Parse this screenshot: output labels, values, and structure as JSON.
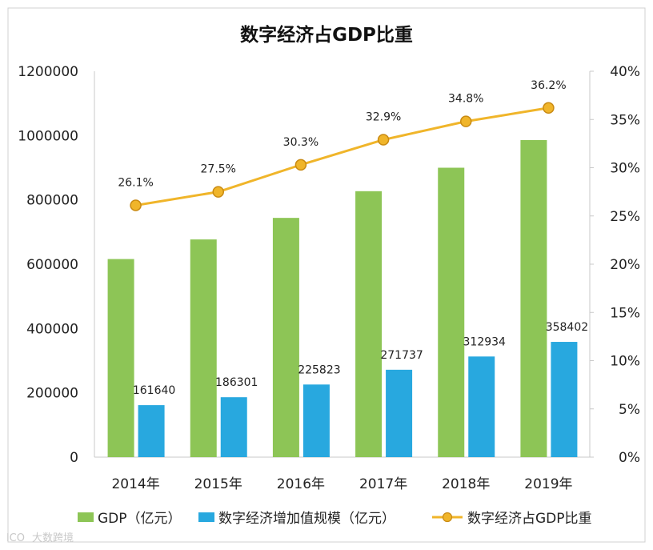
{
  "chart_data": {
    "type": "bar",
    "title": "数字经济占GDP比重",
    "categories": [
      "2014年",
      "2015年",
      "2016年",
      "2017年",
      "2018年",
      "2019年"
    ],
    "series": [
      {
        "name": "GDP（亿元）",
        "axis": "left",
        "type": "bar",
        "color": "#8dc556",
        "values": [
          616000,
          677000,
          744000,
          827000,
          900000,
          986000
        ]
      },
      {
        "name": "数字经济增加值规模（亿元）",
        "axis": "left",
        "type": "bar",
        "color": "#28a8df",
        "values": [
          161640,
          186301,
          225823,
          271737,
          312934,
          358402
        ],
        "labels": [
          "161640",
          "186301",
          "225823",
          "271737",
          "312934",
          "358402"
        ]
      },
      {
        "name": "数字经济占GDP比重",
        "axis": "right",
        "type": "line",
        "color": "#f0b52a",
        "values": [
          26.1,
          27.5,
          30.3,
          32.9,
          34.8,
          36.2
        ],
        "labels": [
          "26.1%",
          "27.5%",
          "30.3%",
          "32.9%",
          "34.8%",
          "36.2%"
        ]
      }
    ],
    "y_left": {
      "min": 0,
      "max": 1200000,
      "ticks": [
        "0",
        "200000",
        "400000",
        "600000",
        "800000",
        "1000000",
        "1200000"
      ]
    },
    "y_right": {
      "min": 0,
      "max": 40,
      "ticks": [
        "0%",
        "5%",
        "10%",
        "15%",
        "20%",
        "25%",
        "30%",
        "35%",
        "40%"
      ]
    },
    "legend_position": "bottom"
  },
  "watermark": "大数跨境",
  "watermark_logo_text": "lCO"
}
